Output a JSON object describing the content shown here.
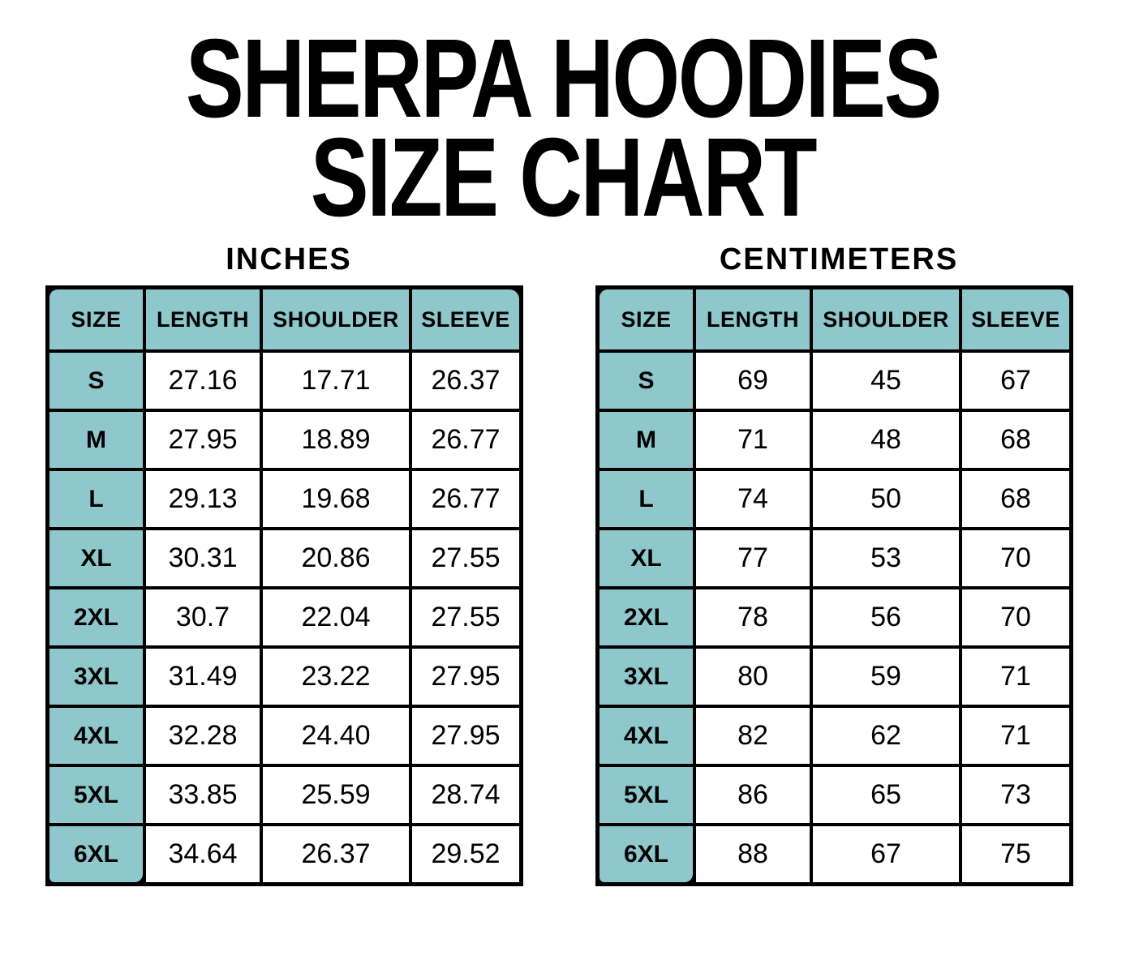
{
  "title": {
    "line1": "SHERPA HOODIES",
    "line2": "SIZE CHART"
  },
  "colors": {
    "header_teal": "#8EC7CC",
    "grid_border": "#000000",
    "background": "#FFFFFF",
    "text": "#000000"
  },
  "tables": [
    {
      "id": "inches",
      "heading": "INCHES",
      "columns": [
        "SIZE",
        "LENGTH",
        "SHOULDER",
        "SLEEVE"
      ],
      "rows": [
        {
          "size": "S",
          "values": [
            "27.16",
            "17.71",
            "26.37"
          ]
        },
        {
          "size": "M",
          "values": [
            "27.95",
            "18.89",
            "26.77"
          ]
        },
        {
          "size": "L",
          "values": [
            "29.13",
            "19.68",
            "26.77"
          ]
        },
        {
          "size": "XL",
          "values": [
            "30.31",
            "20.86",
            "27.55"
          ]
        },
        {
          "size": "2XL",
          "values": [
            "30.7",
            "22.04",
            "27.55"
          ]
        },
        {
          "size": "3XL",
          "values": [
            "31.49",
            "23.22",
            "27.95"
          ]
        },
        {
          "size": "4XL",
          "values": [
            "32.28",
            "24.40",
            "27.95"
          ]
        },
        {
          "size": "5XL",
          "values": [
            "33.85",
            "25.59",
            "28.74"
          ]
        },
        {
          "size": "6XL",
          "values": [
            "34.64",
            "26.37",
            "29.52"
          ]
        }
      ]
    },
    {
      "id": "centimeters",
      "heading": "CENTIMETERS",
      "columns": [
        "SIZE",
        "LENGTH",
        "SHOULDER",
        "SLEEVE"
      ],
      "rows": [
        {
          "size": "S",
          "values": [
            "69",
            "45",
            "67"
          ]
        },
        {
          "size": "M",
          "values": [
            "71",
            "48",
            "68"
          ]
        },
        {
          "size": "L",
          "values": [
            "74",
            "50",
            "68"
          ]
        },
        {
          "size": "XL",
          "values": [
            "77",
            "53",
            "70"
          ]
        },
        {
          "size": "2XL",
          "values": [
            "78",
            "56",
            "70"
          ]
        },
        {
          "size": "3XL",
          "values": [
            "80",
            "59",
            "71"
          ]
        },
        {
          "size": "4XL",
          "values": [
            "82",
            "62",
            "71"
          ]
        },
        {
          "size": "5XL",
          "values": [
            "86",
            "65",
            "73"
          ]
        },
        {
          "size": "6XL",
          "values": [
            "88",
            "67",
            "75"
          ]
        }
      ]
    }
  ]
}
